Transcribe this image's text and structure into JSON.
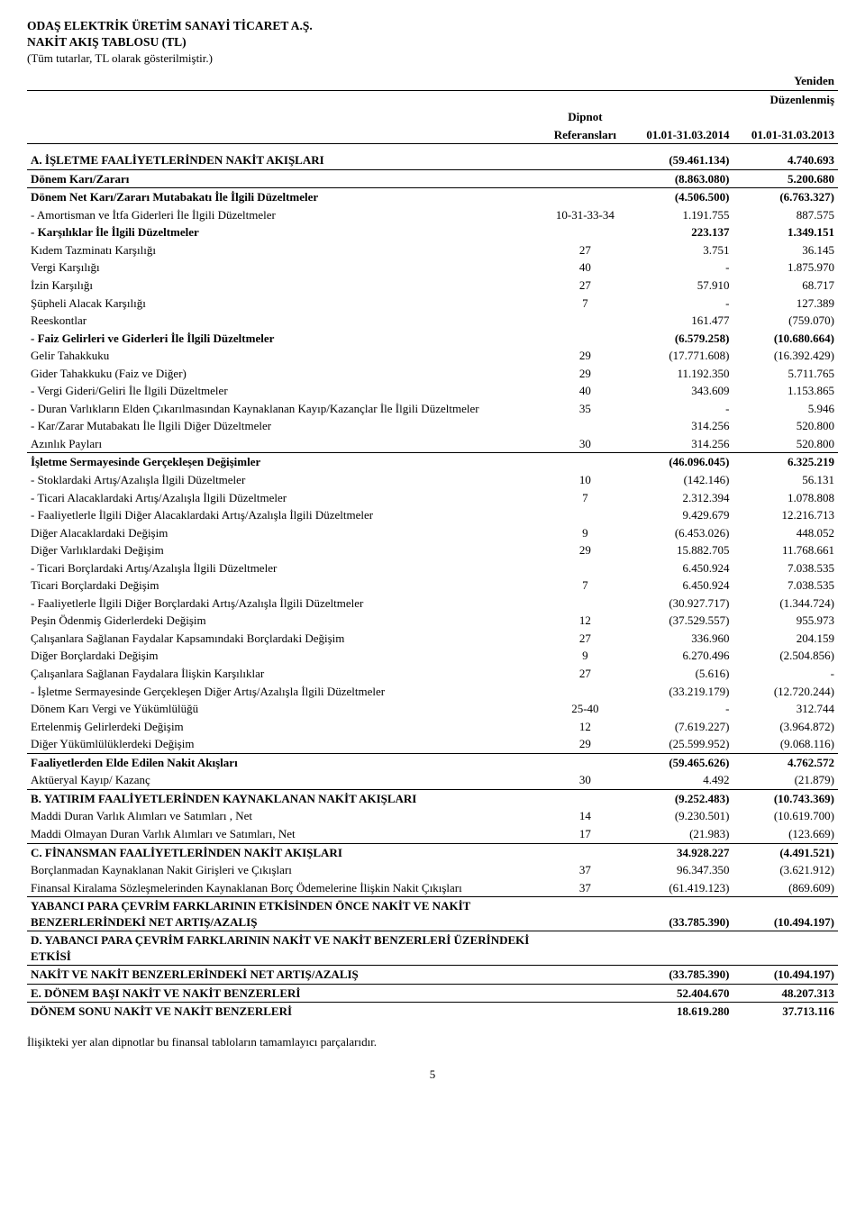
{
  "header": {
    "company": "ODAŞ ELEKTRİK ÜRETİM SANAYİ TİCARET A.Ş.",
    "title": "NAKİT AKIŞ TABLOSU (TL)",
    "subtitle": "(Tüm tutarlar, TL olarak gösterilmiştir.)",
    "col_header_top_right": "Yeniden",
    "col_header_bottom_right": "Düzenlenmiş",
    "col_ref_top": "Dipnot",
    "col_ref_bottom": "Referansları",
    "col_period1": "01.01-31.03.2014",
    "col_period2": "01.01-31.03.2013"
  },
  "rows": [
    {
      "label": "A. İŞLETME FAALİYETLERİNDEN NAKİT AKIŞLARI",
      "ref": "",
      "v1": "(59.461.134)",
      "v2": "4.740.693",
      "bold": true
    },
    {
      "label": "Dönem Karı/Zararı",
      "ref": "",
      "v1": "(8.863.080)",
      "v2": "5.200.680",
      "bold": true,
      "rule": "full"
    },
    {
      "label": "Dönem Net Karı/Zararı Mutabakatı İle İlgili Düzeltmeler",
      "ref": "",
      "v1": "(4.506.500)",
      "v2": "(6.763.327)",
      "bold": true,
      "rule": "full"
    },
    {
      "label": " - Amortisman ve İtfa Giderleri İle İlgili Düzeltmeler",
      "ref": "10-31-33-34",
      "v1": "1.191.755",
      "v2": "887.575"
    },
    {
      "label": " - Karşılıklar İle İlgili Düzeltmeler",
      "ref": "",
      "v1": "223.137",
      "v2": "1.349.151",
      "bold": true
    },
    {
      "label": "Kıdem Tazminatı Karşılığı",
      "ref": "27",
      "v1": "3.751",
      "v2": "36.145"
    },
    {
      "label": "Vergi Karşılığı",
      "ref": "40",
      "v1": "-",
      "v2": "1.875.970"
    },
    {
      "label": "İzin Karşılığı",
      "ref": "27",
      "v1": "57.910",
      "v2": "68.717"
    },
    {
      "label": "Şüpheli Alacak Karşılığı",
      "ref": "7",
      "v1": "-",
      "v2": "127.389"
    },
    {
      "label": "Reeskontlar",
      "ref": "",
      "v1": "161.477",
      "v2": "(759.070)"
    },
    {
      "label": " - Faiz Gelirleri ve Giderleri İle İlgili Düzeltmeler",
      "ref": "",
      "v1": "(6.579.258)",
      "v2": "(10.680.664)",
      "bold": true
    },
    {
      "label": "Gelir Tahakkuku",
      "ref": "29",
      "v1": "(17.771.608)",
      "v2": "(16.392.429)"
    },
    {
      "label": "Gider Tahakkuku (Faiz ve Diğer)",
      "ref": "29",
      "v1": "11.192.350",
      "v2": "5.711.765"
    },
    {
      "label": " - Vergi Gideri/Geliri İle İlgili Düzeltmeler",
      "ref": "40",
      "v1": "343.609",
      "v2": "1.153.865"
    },
    {
      "label": " - Duran Varlıkların Elden Çıkarılmasından Kaynaklanan Kayıp/Kazançlar İle İlgili Düzeltmeler",
      "ref": "35",
      "v1": "-",
      "v2": "5.946"
    },
    {
      "label": " - Kar/Zarar Mutabakatı İle İlgili Diğer Düzeltmeler",
      "ref": "",
      "v1": "314.256",
      "v2": "520.800"
    },
    {
      "label": "Azınlık Payları",
      "ref": "30",
      "v1": "314.256",
      "v2": "520.800"
    },
    {
      "label": "İşletme Sermayesinde Gerçekleşen Değişimler",
      "ref": "",
      "v1": "(46.096.045)",
      "v2": "6.325.219",
      "bold": true,
      "rule": "full"
    },
    {
      "label": " - Stoklardaki Artış/Azalışla İlgili Düzeltmeler",
      "ref": "10",
      "v1": "(142.146)",
      "v2": "56.131"
    },
    {
      "label": " - Ticari Alacaklardaki Artış/Azalışla İlgili Düzeltmeler",
      "ref": "7",
      "v1": "2.312.394",
      "v2": "1.078.808"
    },
    {
      "label": " - Faaliyetlerle İlgili Diğer Alacaklardaki Artış/Azalışla İlgili Düzeltmeler",
      "ref": "",
      "v1": "9.429.679",
      "v2": "12.216.713"
    },
    {
      "label": "Diğer Alacaklardaki Değişim",
      "ref": "9",
      "v1": "(6.453.026)",
      "v2": "448.052"
    },
    {
      "label": "Diğer Varlıklardaki Değişim",
      "ref": "29",
      "v1": "15.882.705",
      "v2": "11.768.661"
    },
    {
      "label": " - Ticari Borçlardaki Artış/Azalışla İlgili Düzeltmeler",
      "ref": "",
      "v1": "6.450.924",
      "v2": "7.038.535"
    },
    {
      "label": "Ticari Borçlardaki Değişim",
      "ref": "7",
      "v1": "6.450.924",
      "v2": "7.038.535"
    },
    {
      "label": " - Faaliyetlerle İlgili Diğer Borçlardaki Artış/Azalışla İlgili Düzeltmeler",
      "ref": "",
      "v1": "(30.927.717)",
      "v2": "(1.344.724)"
    },
    {
      "label": "Peşin Ödenmiş Giderlerdeki Değişim",
      "ref": "12",
      "v1": "(37.529.557)",
      "v2": "955.973"
    },
    {
      "label": "Çalışanlara Sağlanan Faydalar Kapsamındaki Borçlardaki Değişim",
      "ref": "27",
      "v1": "336.960",
      "v2": "204.159"
    },
    {
      "label": "Diğer Borçlardaki Değişim",
      "ref": "9",
      "v1": "6.270.496",
      "v2": "(2.504.856)"
    },
    {
      "label": "Çalışanlara Sağlanan Faydalara İlişkin Karşılıklar",
      "ref": "27",
      "v1": "(5.616)",
      "v2": "-"
    },
    {
      "label": " - İşletme Sermayesinde Gerçekleşen Diğer Artış/Azalışla İlgili Düzeltmeler",
      "ref": "",
      "v1": "(33.219.179)",
      "v2": "(12.720.244)"
    },
    {
      "label": "Dönem Karı Vergi ve Yükümlülüğü",
      "ref": "25-40",
      "v1": "-",
      "v2": "312.744"
    },
    {
      "label": "Ertelenmiş Gelirlerdeki Değişim",
      "ref": "12",
      "v1": "(7.619.227)",
      "v2": "(3.964.872)"
    },
    {
      "label": "Diğer Yükümlülüklerdeki Değişim",
      "ref": "29",
      "v1": "(25.599.952)",
      "v2": "(9.068.116)"
    },
    {
      "label": "Faaliyetlerden Elde Edilen Nakit Akışları",
      "ref": "",
      "v1": "(59.465.626)",
      "v2": "4.762.572",
      "bold": true,
      "rule": "full"
    },
    {
      "label": "Aktüeryal Kayıp/ Kazanç",
      "ref": "30",
      "v1": "4.492",
      "v2": "(21.879)"
    },
    {
      "label": "B. YATIRIM FAALİYETLERİNDEN KAYNAKLANAN NAKİT AKIŞLARI",
      "ref": "",
      "v1": "(9.252.483)",
      "v2": "(10.743.369)",
      "bold": true,
      "rule": "full"
    },
    {
      "label": "Maddi Duran Varlık Alımları ve Satımları , Net",
      "ref": "14",
      "v1": "(9.230.501)",
      "v2": "(10.619.700)"
    },
    {
      "label": "Maddi Olmayan Duran Varlık Alımları ve Satımları, Net",
      "ref": "17",
      "v1": "(21.983)",
      "v2": "(123.669)"
    },
    {
      "label": "C. FİNANSMAN FAALİYETLERİNDEN NAKİT AKIŞLARI",
      "ref": "",
      "v1": "34.928.227",
      "v2": "(4.491.521)",
      "bold": true,
      "rule": "full"
    },
    {
      "label": "Borçlanmadan Kaynaklanan Nakit Girişleri ve Çıkışları",
      "ref": "37",
      "v1": "96.347.350",
      "v2": "(3.621.912)"
    },
    {
      "label": "Finansal Kiralama Sözleşmelerinden Kaynaklanan Borç Ödemelerine İlişkin Nakit Çıkışları",
      "ref": "37",
      "v1": "(61.419.123)",
      "v2": "(869.609)"
    },
    {
      "label": "YABANCI PARA ÇEVRİM FARKLARININ ETKİSİNDEN ÖNCE NAKİT VE NAKİT BENZERLERİNDEKİ NET ARTIŞ/AZALIŞ",
      "ref": "",
      "v1": "(33.785.390)",
      "v2": "(10.494.197)",
      "bold": true,
      "rule": "full"
    },
    {
      "label": "D. YABANCI PARA ÇEVRİM FARKLARININ NAKİT VE NAKİT BENZERLERİ ÜZERİNDEKİ ETKİSİ",
      "ref": "",
      "v1": "",
      "v2": "",
      "bold": true,
      "rule": "full"
    },
    {
      "label": "NAKİT VE NAKİT BENZERLERİNDEKİ NET ARTIŞ/AZALIŞ",
      "ref": "",
      "v1": "(33.785.390)",
      "v2": "(10.494.197)",
      "bold": true,
      "rule": "full"
    },
    {
      "label": "E. DÖNEM BAŞI NAKİT VE NAKİT BENZERLERİ",
      "ref": "",
      "v1": "52.404.670",
      "v2": "48.207.313",
      "bold": true,
      "rule": "full"
    },
    {
      "label": "DÖNEM SONU NAKİT VE NAKİT BENZERLERİ",
      "ref": "",
      "v1": "18.619.280",
      "v2": "37.713.116",
      "bold": true,
      "rule": "full"
    }
  ],
  "footnote": "İlişikteki yer alan dipnotlar bu finansal tabloların tamamlayıcı parçalarıdır.",
  "pagenum": "5"
}
